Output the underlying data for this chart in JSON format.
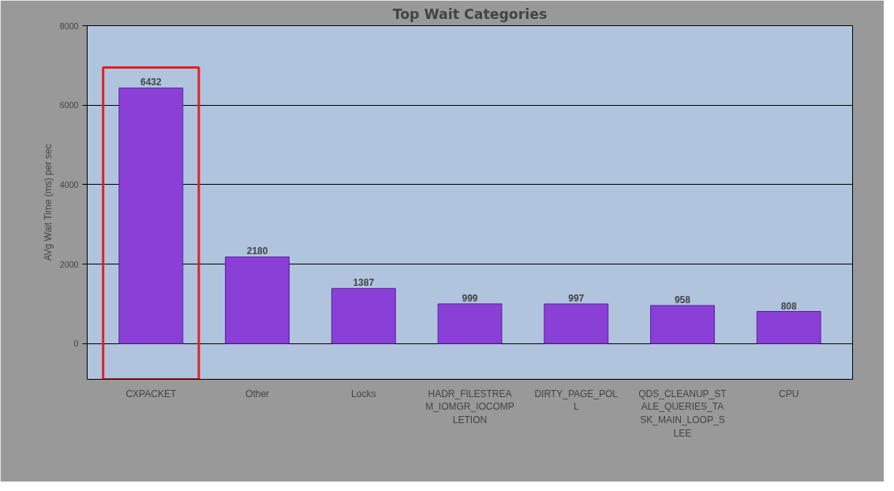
{
  "chart_data": {
    "type": "bar",
    "title": "Top Wait Categories",
    "ylabel": "AVg Wait Time (ms) per sec",
    "categories": [
      "CXPACKET",
      "Other",
      "Locks",
      "HADR_FILESTREAM_IOMGR_IOCOMPLETION",
      "DIRTY_PAGE_POLL",
      "QDS_CLEANUP_STALE_QUERIES_TASK_MAIN_LOOP_SLEE",
      "CPU"
    ],
    "values": [
      6432,
      2180,
      1387,
      999,
      997,
      958,
      808
    ],
    "color": "#8a3fd6",
    "ylim": [
      -900,
      8000
    ],
    "yticks": [
      0,
      2000,
      4000,
      6000,
      8000
    ],
    "grid": "y",
    "data_labels": true
  }
}
